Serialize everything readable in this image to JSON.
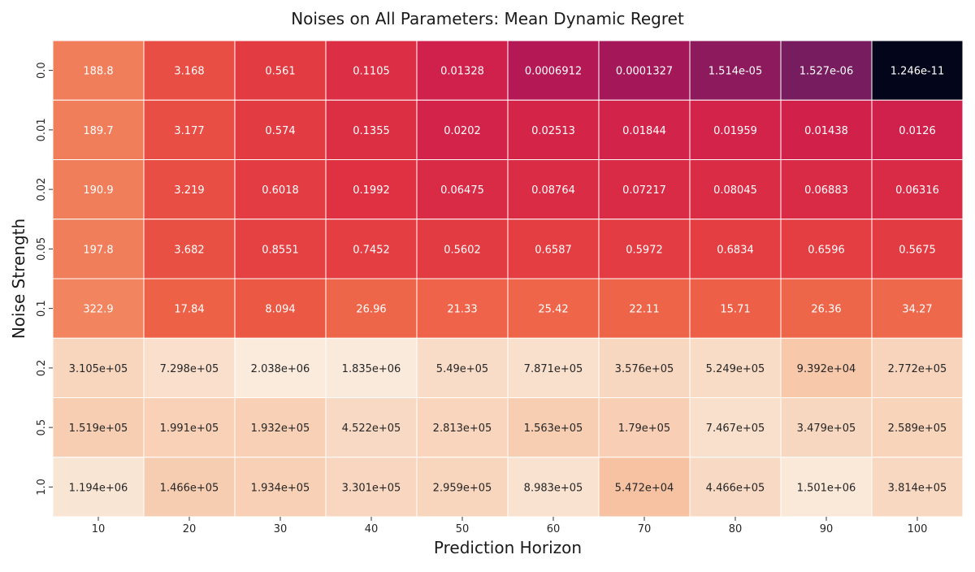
{
  "chart_data": {
    "type": "heatmap",
    "title": "Noises on All Parameters: Mean Dynamic Regret",
    "xlabel": "Prediction Horizon",
    "ylabel": "Noise Strength",
    "x_categories": [
      "10",
      "20",
      "30",
      "40",
      "50",
      "60",
      "70",
      "80",
      "90",
      "100"
    ],
    "y_categories": [
      "0.0",
      "0.01",
      "0.02",
      "0.05",
      "0.1",
      "0.2",
      "0.5",
      "1.0"
    ],
    "color_scale": "rocket",
    "color_scale_note": "log-scaled values",
    "colorbar": false,
    "grid_lines": "white",
    "values": [
      [
        188.8,
        3.168,
        0.561,
        0.1105,
        0.01328,
        0.0006912,
        0.0001327,
        1.514e-05,
        1.527e-06,
        1.246e-11
      ],
      [
        189.7,
        3.177,
        0.574,
        0.1355,
        0.0202,
        0.02513,
        0.01844,
        0.01959,
        0.01438,
        0.0126
      ],
      [
        190.9,
        3.219,
        0.6018,
        0.1992,
        0.06475,
        0.08764,
        0.07217,
        0.08045,
        0.06883,
        0.06316
      ],
      [
        197.8,
        3.682,
        0.8551,
        0.7452,
        0.5602,
        0.6587,
        0.5972,
        0.6834,
        0.6596,
        0.5675
      ],
      [
        322.9,
        17.84,
        8.094,
        26.96,
        21.33,
        25.42,
        22.11,
        15.71,
        26.36,
        34.27
      ],
      [
        310500,
        729800,
        2038000,
        1835000,
        549000,
        787100,
        357600,
        524900,
        93920,
        277200
      ],
      [
        151900,
        199100,
        193200,
        452200,
        281300,
        156300,
        179000,
        746700,
        347900,
        258900
      ],
      [
        1194000,
        146600,
        193400,
        330100,
        295900,
        898300,
        54720,
        446600,
        1501000,
        381400
      ]
    ],
    "labels": [
      [
        "188.8",
        "3.168",
        "0.561",
        "0.1105",
        "0.01328",
        "0.0006912",
        "0.0001327",
        "1.514e-05",
        "1.527e-06",
        "1.246e-11"
      ],
      [
        "189.7",
        "3.177",
        "0.574",
        "0.1355",
        "0.0202",
        "0.02513",
        "0.01844",
        "0.01959",
        "0.01438",
        "0.0126"
      ],
      [
        "190.9",
        "3.219",
        "0.6018",
        "0.1992",
        "0.06475",
        "0.08764",
        "0.07217",
        "0.08045",
        "0.06883",
        "0.06316"
      ],
      [
        "197.8",
        "3.682",
        "0.8551",
        "0.7452",
        "0.5602",
        "0.6587",
        "0.5972",
        "0.6834",
        "0.6596",
        "0.5675"
      ],
      [
        "322.9",
        "17.84",
        "8.094",
        "26.96",
        "21.33",
        "25.42",
        "22.11",
        "15.71",
        "26.36",
        "34.27"
      ],
      [
        "3.105e+05",
        "7.298e+05",
        "2.038e+06",
        "1.835e+06",
        "5.49e+05",
        "7.871e+05",
        "3.576e+05",
        "5.249e+05",
        "9.392e+04",
        "2.772e+05"
      ],
      [
        "1.519e+05",
        "1.991e+05",
        "1.932e+05",
        "4.522e+05",
        "2.813e+05",
        "1.563e+05",
        "1.79e+05",
        "7.467e+05",
        "3.479e+05",
        "2.589e+05"
      ],
      [
        "1.194e+06",
        "1.466e+05",
        "1.934e+05",
        "3.301e+05",
        "2.959e+05",
        "8.983e+05",
        "5.472e+04",
        "4.466e+05",
        "1.501e+06",
        "3.814e+05"
      ]
    ]
  }
}
